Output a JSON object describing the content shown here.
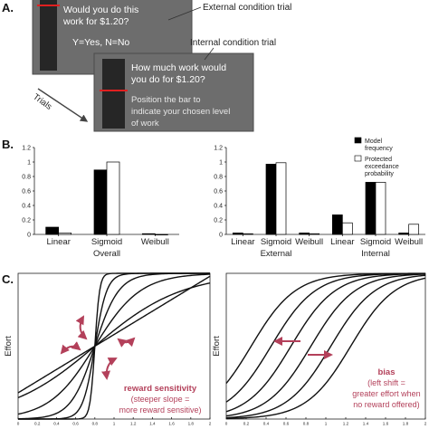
{
  "panels": {
    "a": "A.",
    "b": "B.",
    "c": "C."
  },
  "panel_a": {
    "external": {
      "caption": "External condition trial",
      "question_line1": "Would you do this",
      "question_line2": "work for $1.20?",
      "response": "Y=Yes, N=No"
    },
    "internal": {
      "caption": "Internal condition trial",
      "question_line1": "How much work would",
      "question_line2": "you do for $1.20?",
      "instr_line1": "Position the bar to",
      "instr_line2": "indicate your chosen level",
      "instr_line3": "of work"
    },
    "trials_label": "Trials",
    "colors": {
      "screen": "#6d6d6d",
      "bar": "#262626",
      "marker": "#e02020"
    }
  },
  "legend": {
    "model_line1": "Model",
    "model_line2": "frequency",
    "exc_line1": "Protected",
    "exc_line2": "exceedance",
    "exc_line3": "probability"
  },
  "chart_data": [
    {
      "type": "bar",
      "panel": "B-left",
      "categories": [
        "Linear",
        "Sigmoid",
        "Weibull"
      ],
      "group_label": "Overall",
      "series": [
        {
          "values": [
            0.1,
            0.89,
            0.01
          ],
          "color": "#000000"
        },
        {
          "values": [
            0.02,
            1.0,
            0.0
          ],
          "color": "#ffffff"
        }
      ],
      "ylim": [
        0,
        1.2
      ],
      "yticks": [
        "0",
        "0.2",
        "0.4",
        "0.6",
        "0.8",
        "1",
        "1.2"
      ]
    },
    {
      "type": "bar",
      "panel": "B-right",
      "categories": [
        "Linear",
        "Sigmoid",
        "Weibull",
        "Linear",
        "Sigmoid",
        "Weibull"
      ],
      "group_labels": [
        "External",
        "Internal"
      ],
      "series": [
        {
          "values": [
            0.02,
            0.97,
            0.02,
            0.27,
            0.72,
            0.02
          ],
          "color": "#000000"
        },
        {
          "values": [
            0.01,
            0.99,
            0.01,
            0.16,
            0.72,
            0.14
          ],
          "color": "#ffffff"
        }
      ],
      "ylim": [
        0,
        1.2
      ],
      "yticks": [
        "0",
        "0.2",
        "0.4",
        "0.6",
        "0.8",
        "1",
        "1.2"
      ]
    },
    {
      "type": "line",
      "panel": "C-left",
      "ylabel": "Effort",
      "xlim": [
        0,
        2
      ],
      "xticks": [
        "0",
        "0.2",
        "0.4",
        "0.6",
        "0.8",
        "1",
        "1.2",
        "1.4",
        "1.6",
        "1.8",
        "2"
      ],
      "curve_slopes": [
        2.2,
        4.2,
        8,
        16,
        40
      ],
      "linear_slope": 0.4,
      "center": 0.8,
      "annotation": {
        "title": "reward sensitivity",
        "line1": "(steeper slope =",
        "line2": "more reward sensitive)"
      }
    },
    {
      "type": "line",
      "panel": "C-right",
      "ylabel": "Effort",
      "xlim": [
        0,
        2
      ],
      "xticks": [
        "0",
        "0.2",
        "0.4",
        "0.6",
        "0.8",
        "1",
        "1.2",
        "1.4",
        "1.6",
        "1.8",
        "2"
      ],
      "curve_centers": [
        0.25,
        0.45,
        0.65,
        0.85,
        1.05,
        1.25
      ],
      "slope": 4.5,
      "annotation": {
        "title": "bias",
        "line1": "(left shift =",
        "line2": "greater effort when",
        "line3": "no reward offered)"
      }
    }
  ]
}
